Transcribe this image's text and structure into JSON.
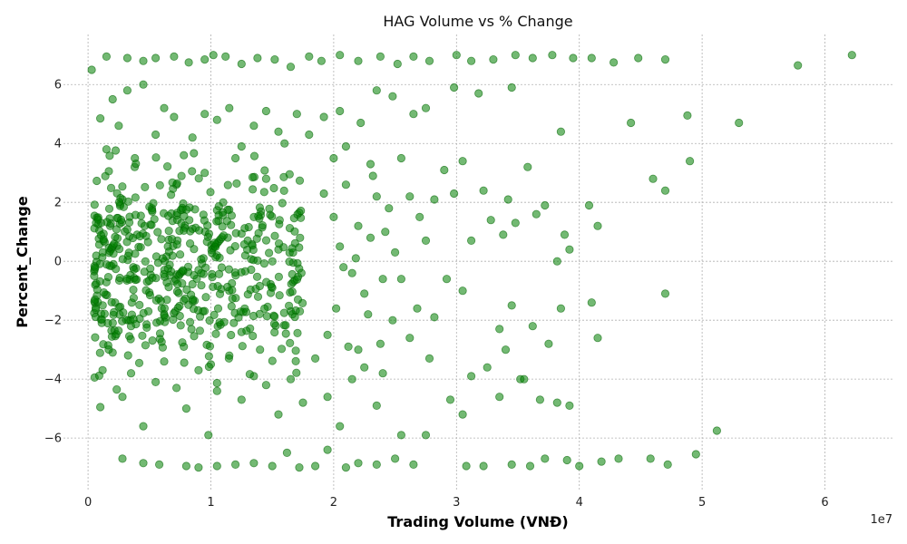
{
  "chart_data": {
    "type": "scatter",
    "title": "HAG Volume vs % Change",
    "xlabel": "Trading Volume (VNĐ)",
    "ylabel": "Percent_Change",
    "x_offset_label": "1e7",
    "x_units_scale": 10000000,
    "xlim": [
      -0.2,
      6.55
    ],
    "ylim": [
      -7.75,
      7.7
    ],
    "x_ticks": [
      0,
      1,
      2,
      3,
      4,
      5,
      6
    ],
    "x_tick_labels": [
      "0",
      "1",
      "2",
      "3",
      "4",
      "5",
      "6"
    ],
    "y_ticks": [
      -6,
      -4,
      -2,
      0,
      2,
      4,
      6
    ],
    "y_tick_labels": [
      "−6",
      "−4",
      "−2",
      "0",
      "2",
      "4",
      "6"
    ],
    "grid": true,
    "marker_color": "#008000",
    "marker_alpha": 0.55,
    "series": [
      {
        "points": [
          [
            0.03,
            6.5
          ],
          [
            0.15,
            6.95
          ],
          [
            0.32,
            6.9
          ],
          [
            0.45,
            6.8
          ],
          [
            0.55,
            6.9
          ],
          [
            0.7,
            6.95
          ],
          [
            0.82,
            6.75
          ],
          [
            0.95,
            6.85
          ],
          [
            1.02,
            7.0
          ],
          [
            1.12,
            6.95
          ],
          [
            1.25,
            6.7
          ],
          [
            1.38,
            6.9
          ],
          [
            1.52,
            6.85
          ],
          [
            1.65,
            6.6
          ],
          [
            1.8,
            6.95
          ],
          [
            1.9,
            6.8
          ],
          [
            2.05,
            7.0
          ],
          [
            2.2,
            6.8
          ],
          [
            2.38,
            6.95
          ],
          [
            2.52,
            6.7
          ],
          [
            2.65,
            6.95
          ],
          [
            2.78,
            6.8
          ],
          [
            3.0,
            7.0
          ],
          [
            3.12,
            6.8
          ],
          [
            3.3,
            6.85
          ],
          [
            3.48,
            7.0
          ],
          [
            3.62,
            6.9
          ],
          [
            3.78,
            7.0
          ],
          [
            3.95,
            6.9
          ],
          [
            4.1,
            6.9
          ],
          [
            4.28,
            6.75
          ],
          [
            4.48,
            6.9
          ],
          [
            4.7,
            6.85
          ],
          [
            5.78,
            6.65
          ],
          [
            6.22,
            7.0
          ],
          [
            0.05,
            -0.5
          ],
          [
            0.12,
            0.3
          ],
          [
            0.18,
            1.2
          ],
          [
            0.22,
            -1.4
          ],
          [
            0.28,
            2.1
          ],
          [
            0.35,
            -2.2
          ],
          [
            0.4,
            0.9
          ],
          [
            0.48,
            -0.7
          ],
          [
            0.52,
            1.8
          ],
          [
            0.6,
            -1.6
          ],
          [
            0.65,
            0.5
          ],
          [
            0.72,
            2.6
          ],
          [
            0.78,
            -2.9
          ],
          [
            0.85,
            1.1
          ],
          [
            0.9,
            -0.3
          ],
          [
            0.95,
            3.0
          ],
          [
            1.0,
            -3.5
          ],
          [
            1.05,
            0.2
          ],
          [
            1.1,
            2.0
          ],
          [
            1.15,
            -1.0
          ],
          [
            1.2,
            3.5
          ],
          [
            1.25,
            -2.4
          ],
          [
            1.3,
            0.7
          ],
          [
            1.35,
            1.5
          ],
          [
            1.4,
            -3.0
          ],
          [
            1.45,
            2.8
          ],
          [
            1.5,
            -0.9
          ],
          [
            1.55,
            0.4
          ],
          [
            1.6,
            4.0
          ],
          [
            1.65,
            -1.7
          ],
          [
            0.1,
            4.85
          ],
          [
            0.15,
            3.8
          ],
          [
            0.2,
            5.5
          ],
          [
            0.25,
            4.6
          ],
          [
            0.32,
            5.8
          ],
          [
            0.38,
            3.2
          ],
          [
            0.45,
            6.0
          ],
          [
            0.55,
            4.3
          ],
          [
            0.62,
            5.2
          ],
          [
            0.7,
            4.9
          ],
          [
            0.78,
            3.6
          ],
          [
            0.85,
            4.2
          ],
          [
            0.95,
            5.0
          ],
          [
            1.05,
            4.8
          ],
          [
            1.15,
            5.2
          ],
          [
            1.25,
            3.9
          ],
          [
            1.35,
            4.6
          ],
          [
            1.45,
            5.1
          ],
          [
            1.55,
            4.4
          ],
          [
            1.7,
            5.0
          ],
          [
            1.8,
            4.3
          ],
          [
            1.92,
            4.9
          ],
          [
            2.05,
            5.1
          ],
          [
            2.22,
            4.7
          ],
          [
            2.35,
            5.8
          ],
          [
            2.48,
            5.6
          ],
          [
            2.65,
            5.0
          ],
          [
            2.75,
            5.2
          ],
          [
            2.98,
            5.9
          ],
          [
            3.18,
            5.7
          ],
          [
            3.45,
            5.9
          ],
          [
            3.85,
            4.4
          ],
          [
            4.42,
            4.7
          ],
          [
            4.88,
            4.95
          ],
          [
            5.3,
            4.7
          ],
          [
            0.1,
            -4.95
          ],
          [
            0.2,
            -3.1
          ],
          [
            0.28,
            -4.6
          ],
          [
            0.35,
            -3.8
          ],
          [
            0.45,
            -5.6
          ],
          [
            0.55,
            -4.1
          ],
          [
            0.62,
            -3.4
          ],
          [
            0.72,
            -4.3
          ],
          [
            0.8,
            -5.0
          ],
          [
            0.9,
            -3.7
          ],
          [
            0.98,
            -5.9
          ],
          [
            1.05,
            -4.4
          ],
          [
            1.15,
            -3.2
          ],
          [
            1.25,
            -4.7
          ],
          [
            1.35,
            -3.9
          ],
          [
            1.45,
            -4.2
          ],
          [
            1.55,
            -5.2
          ],
          [
            1.65,
            -4.0
          ],
          [
            1.75,
            -4.8
          ],
          [
            1.85,
            -3.3
          ],
          [
            1.95,
            -4.6
          ],
          [
            2.05,
            -5.6
          ],
          [
            2.15,
            -4.0
          ],
          [
            2.25,
            -3.6
          ],
          [
            2.35,
            -4.9
          ],
          [
            2.55,
            -5.9
          ],
          [
            2.75,
            -5.9
          ],
          [
            2.95,
            -4.7
          ],
          [
            3.05,
            -5.2
          ],
          [
            3.35,
            -4.6
          ],
          [
            3.52,
            -4.0
          ],
          [
            3.68,
            -4.7
          ],
          [
            3.82,
            -4.8
          ],
          [
            5.12,
            -5.75
          ],
          [
            0.28,
            -6.7
          ],
          [
            0.45,
            -6.85
          ],
          [
            0.58,
            -6.9
          ],
          [
            0.8,
            -6.95
          ],
          [
            0.9,
            -7.0
          ],
          [
            1.05,
            -6.95
          ],
          [
            1.2,
            -6.9
          ],
          [
            1.35,
            -6.85
          ],
          [
            1.5,
            -6.95
          ],
          [
            1.62,
            -6.5
          ],
          [
            1.72,
            -7.0
          ],
          [
            1.85,
            -6.95
          ],
          [
            1.95,
            -6.4
          ],
          [
            2.1,
            -7.0
          ],
          [
            2.2,
            -6.85
          ],
          [
            2.35,
            -6.9
          ],
          [
            2.5,
            -6.7
          ],
          [
            2.65,
            -6.9
          ],
          [
            3.08,
            -6.95
          ],
          [
            3.22,
            -6.95
          ],
          [
            3.45,
            -6.9
          ],
          [
            3.6,
            -6.95
          ],
          [
            3.72,
            -6.7
          ],
          [
            3.9,
            -6.75
          ],
          [
            4.0,
            -6.95
          ],
          [
            4.18,
            -6.8
          ],
          [
            4.32,
            -6.7
          ],
          [
            4.58,
            -6.7
          ],
          [
            4.72,
            -6.9
          ],
          [
            4.95,
            -6.55
          ],
          [
            2.55,
            3.5
          ],
          [
            2.62,
            2.2
          ],
          [
            2.7,
            1.5
          ],
          [
            2.75,
            0.7
          ],
          [
            2.82,
            2.1
          ],
          [
            2.9,
            3.1
          ],
          [
            2.98,
            2.3
          ],
          [
            3.05,
            3.4
          ],
          [
            3.12,
            0.7
          ],
          [
            3.22,
            2.4
          ],
          [
            3.28,
            1.4
          ],
          [
            3.38,
            0.9
          ],
          [
            3.42,
            2.1
          ],
          [
            3.48,
            1.3
          ],
          [
            3.58,
            3.2
          ],
          [
            3.65,
            1.6
          ],
          [
            3.72,
            1.9
          ],
          [
            3.82,
            0.0
          ],
          [
            3.88,
            0.9
          ],
          [
            3.92,
            0.4
          ],
          [
            4.08,
            1.9
          ],
          [
            4.15,
            1.2
          ],
          [
            4.6,
            2.8
          ],
          [
            4.7,
            2.4
          ],
          [
            4.9,
            3.4
          ],
          [
            2.55,
            -0.6
          ],
          [
            2.62,
            -2.6
          ],
          [
            2.68,
            -1.6
          ],
          [
            2.78,
            -3.3
          ],
          [
            2.82,
            -1.9
          ],
          [
            2.92,
            -0.6
          ],
          [
            3.05,
            -1.0
          ],
          [
            3.12,
            -3.9
          ],
          [
            3.25,
            -3.6
          ],
          [
            3.35,
            -2.3
          ],
          [
            3.4,
            -3.0
          ],
          [
            3.45,
            -1.5
          ],
          [
            3.55,
            -4.0
          ],
          [
            3.62,
            -2.2
          ],
          [
            3.75,
            -2.8
          ],
          [
            3.85,
            -1.6
          ],
          [
            4.1,
            -1.4
          ],
          [
            4.15,
            -2.6
          ],
          [
            4.7,
            -1.1
          ],
          [
            3.92,
            -4.9
          ],
          [
            1.92,
            2.3
          ],
          [
            2.0,
            1.5
          ],
          [
            2.05,
            0.5
          ],
          [
            2.1,
            2.6
          ],
          [
            2.15,
            -0.4
          ],
          [
            2.2,
            1.2
          ],
          [
            2.25,
            -1.1
          ],
          [
            2.3,
            0.8
          ],
          [
            2.35,
            2.2
          ],
          [
            2.4,
            -0.6
          ],
          [
            2.45,
            1.8
          ],
          [
            2.48,
            -2.0
          ],
          [
            2.5,
            0.3
          ],
          [
            1.95,
            -2.5
          ],
          [
            2.02,
            -1.6
          ],
          [
            2.08,
            -0.2
          ],
          [
            2.12,
            -2.9
          ],
          [
            2.18,
            0.1
          ],
          [
            2.28,
            -1.8
          ],
          [
            2.32,
            2.9
          ],
          [
            2.38,
            -2.8
          ],
          [
            2.42,
            1.0
          ],
          [
            2.0,
            3.5
          ],
          [
            2.1,
            3.9
          ],
          [
            2.2,
            -3.0
          ],
          [
            2.3,
            3.3
          ],
          [
            2.4,
            -3.8
          ]
        ]
      }
    ]
  }
}
